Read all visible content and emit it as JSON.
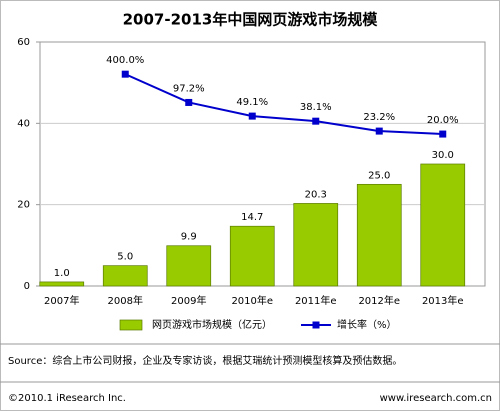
{
  "chart_data": {
    "type": "bar_line",
    "title": "2007-2013年中国网页游戏市场规模",
    "categories": [
      "2007年",
      "2008年",
      "2009年",
      "2010年e",
      "2011年e",
      "2012年e",
      "2013年e"
    ],
    "series": [
      {
        "name": "网页游戏市场规模（亿元）",
        "type": "bar",
        "color": "#99cc00",
        "values": [
          1,
          5,
          9.9,
          14.7,
          20.3,
          25,
          30
        ],
        "value_labels": [
          "1.0",
          "5.0",
          "9.9",
          "14.7",
          "20.3",
          "25.0",
          "30.0"
        ]
      },
      {
        "name": "增长率（%）",
        "type": "line",
        "axis": "y2",
        "color": "#0000cc",
        "values": [
          null,
          400,
          97.2,
          49.1,
          38.1,
          23.2,
          20
        ],
        "value_labels": [
          null,
          "400.0%",
          "97.2%",
          "49.1%",
          "38.1%",
          "23.2%",
          "20.0%"
        ]
      }
    ],
    "ylim": [
      0,
      60
    ],
    "yticks": [
      0,
      20,
      40,
      60
    ],
    "y2lim": [
      0.01,
      2000
    ],
    "y2log": true,
    "grid": true,
    "legend": "bottom"
  },
  "source": "Source：综合上市公司财报，企业及专家访谈，根据艾瑞统计预测模型核算及预估数据。",
  "copyright": "©2010.1 iResearch Inc.",
  "website": "www.iresearch.com.cn"
}
